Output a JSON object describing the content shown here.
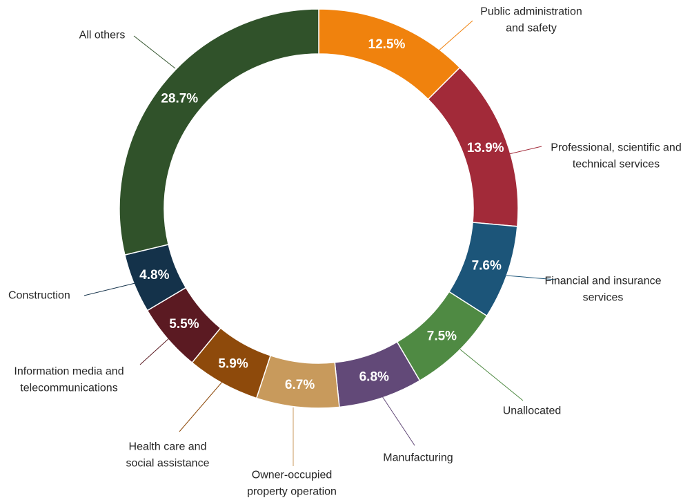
{
  "chart_data": {
    "type": "pie",
    "style": "donut",
    "title": "",
    "unit": "%",
    "slices": [
      {
        "label": "Public administration and safety",
        "label_lines": [
          "Public administration",
          "and safety"
        ],
        "value": 12.5,
        "value_label": "12.5%",
        "color": "#F0820D"
      },
      {
        "label": "Professional, scientific and technical services",
        "label_lines": [
          "Professional, scientific and",
          "technical services"
        ],
        "value": 13.9,
        "value_label": "13.9%",
        "color": "#A22A39"
      },
      {
        "label": "Financial and insurance services",
        "label_lines": [
          "Financial and insurance",
          "services"
        ],
        "value": 7.6,
        "value_label": "7.6%",
        "color": "#1C5579"
      },
      {
        "label": "Unallocated",
        "label_lines": [
          "Unallocated"
        ],
        "value": 7.5,
        "value_label": "7.5%",
        "color": "#4F8A43"
      },
      {
        "label": "Manufacturing",
        "label_lines": [
          "Manufacturing"
        ],
        "value": 6.8,
        "value_label": "6.8%",
        "color": "#624978"
      },
      {
        "label": "Owner-occupied property operation",
        "label_lines": [
          "Owner-occupied",
          "property operation"
        ],
        "value": 6.7,
        "value_label": "6.7%",
        "color": "#C89A5C"
      },
      {
        "label": "Health care and social assistance",
        "label_lines": [
          "Health care and",
          "social assistance"
        ],
        "value": 5.9,
        "value_label": "5.9%",
        "color": "#8E4A0B"
      },
      {
        "label": "Information media and telecommunications",
        "label_lines": [
          "Information media and",
          "telecommunications"
        ],
        "value": 5.5,
        "value_label": "5.5%",
        "color": "#5B1A22"
      },
      {
        "label": "Construction",
        "label_lines": [
          "Construction"
        ],
        "value": 4.8,
        "value_label": "4.8%",
        "color": "#14324A"
      },
      {
        "label": "All others",
        "label_lines": [
          "All others"
        ],
        "value": 28.7,
        "value_label": "28.7%",
        "color": "#30522A"
      }
    ]
  }
}
